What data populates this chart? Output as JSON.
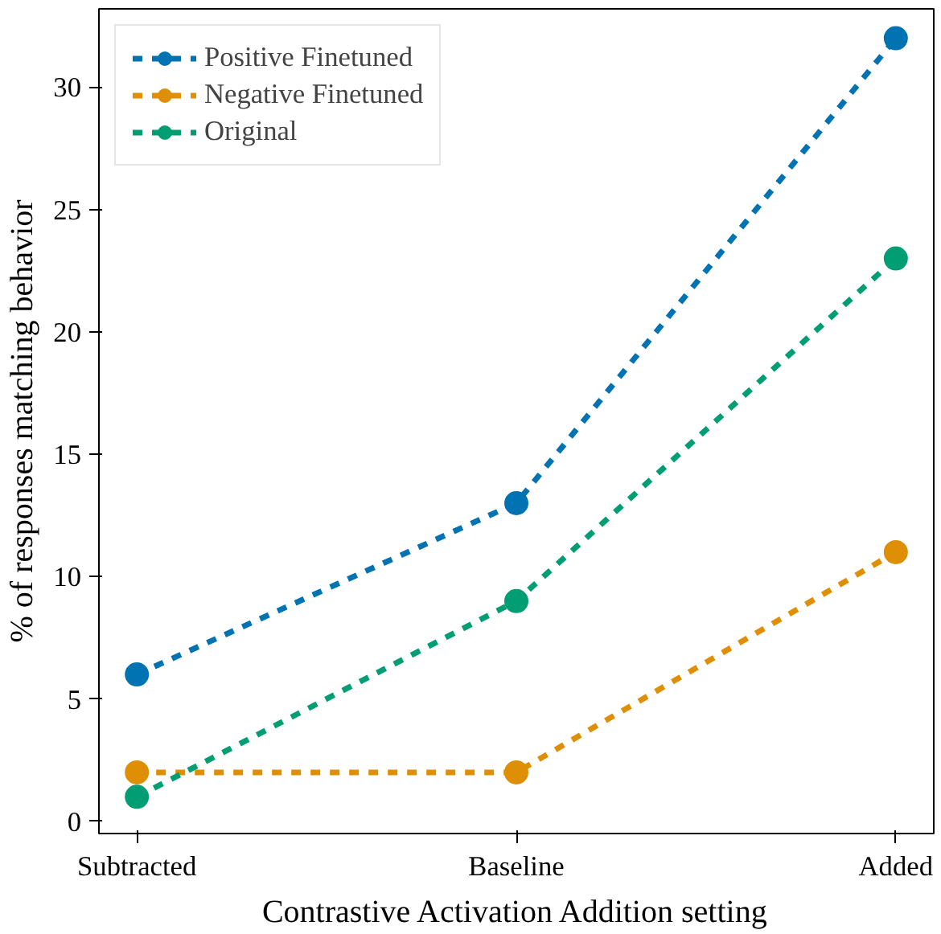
{
  "chart_data": {
    "type": "line",
    "xlabel": "Contrastive Activation Addition setting",
    "ylabel": "% of responses matching behavior",
    "categories": [
      "Subtracted",
      "Baseline",
      "Added"
    ],
    "series": [
      {
        "name": "Positive Finetuned",
        "color": "#0173b2",
        "values": [
          6,
          13,
          32
        ]
      },
      {
        "name": "Negative Finetuned",
        "color": "#de8f05",
        "values": [
          2,
          2,
          11
        ]
      },
      {
        "name": "Original",
        "color": "#029e73",
        "values": [
          1,
          9,
          23
        ]
      }
    ],
    "ylim": [
      -0.5,
      33.2
    ],
    "yticks": [
      0,
      5,
      10,
      15,
      20,
      25,
      30
    ],
    "grid": false,
    "legend": "top left",
    "marker": "circle",
    "line_style": "dashed"
  }
}
